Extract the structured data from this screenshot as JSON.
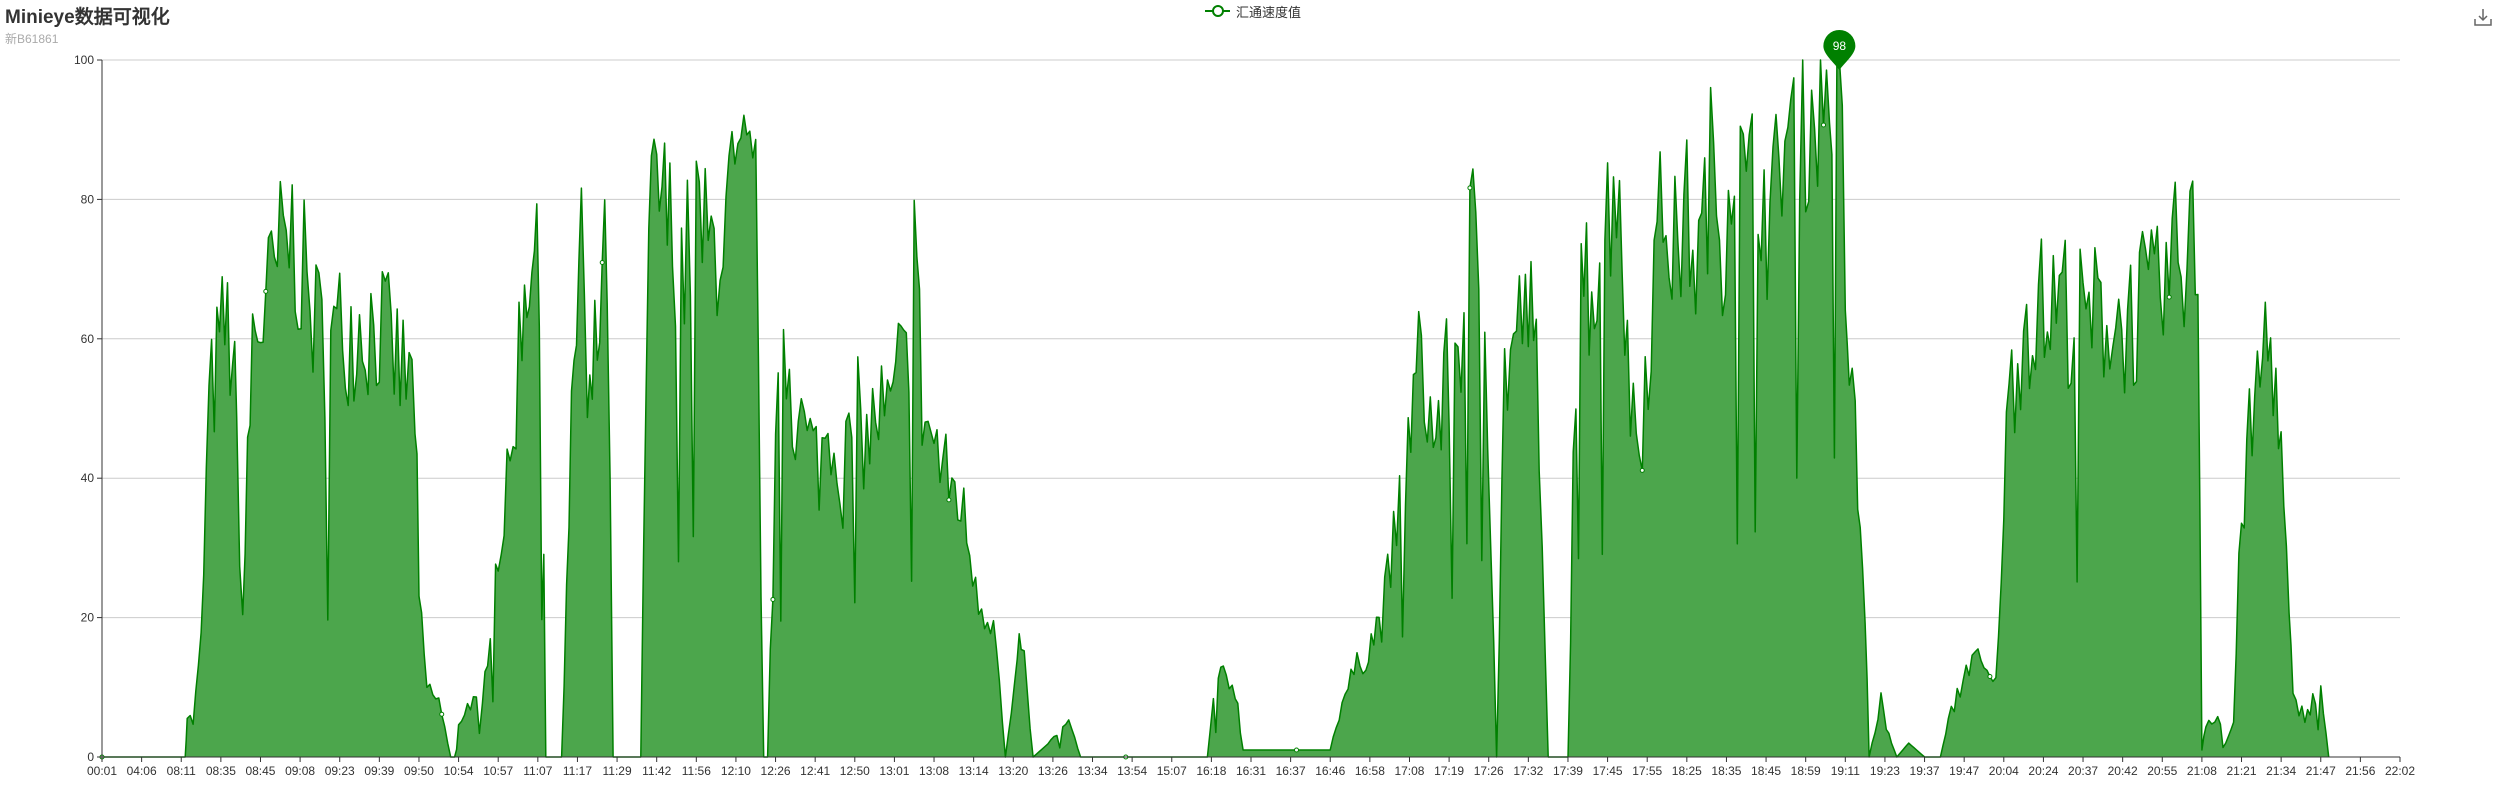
{
  "header": {
    "title": "Minieye数据可视化",
    "subtitle": "新B61861"
  },
  "toolbox": {
    "save_icon": "download-icon"
  },
  "colors": {
    "series": "#008000",
    "area": "#4ca64c",
    "grid": "#cccccc",
    "axis": "#333333"
  },
  "chart_data": {
    "type": "area",
    "title": "Minieye数据可视化",
    "subtitle": "新B61861",
    "legend": {
      "entries": [
        "汇通速度值"
      ],
      "position": "top-center"
    },
    "ylim": [
      0,
      100
    ],
    "yticks": [
      0,
      20,
      40,
      60,
      80,
      100
    ],
    "grid": true,
    "x": [
      "00:01",
      "04:06",
      "08:11",
      "08:35",
      "08:45",
      "09:08",
      "09:23",
      "09:39",
      "09:50",
      "10:54",
      "10:57",
      "11:07",
      "11:17",
      "11:29",
      "11:42",
      "11:56",
      "12:10",
      "12:26",
      "12:41",
      "12:50",
      "13:01",
      "13:08",
      "13:14",
      "13:20",
      "13:26",
      "13:34",
      "13:54",
      "15:07",
      "16:18",
      "16:31",
      "16:37",
      "16:46",
      "16:58",
      "17:08",
      "17:19",
      "17:26",
      "17:32",
      "17:39",
      "17:45",
      "17:55",
      "18:25",
      "18:35",
      "18:45",
      "18:59",
      "19:11",
      "19:23",
      "19:37",
      "19:47",
      "20:04",
      "20:24",
      "20:37",
      "20:42",
      "20:55",
      "21:08",
      "21:21",
      "21:34",
      "21:47",
      "21:56",
      "22:02"
    ],
    "series": [
      {
        "name": "汇通速度值",
        "keypoints": [
          [
            0,
            0
          ],
          [
            2.1,
            0
          ],
          [
            2.15,
            6
          ],
          [
            2.3,
            5
          ],
          [
            2.5,
            16
          ],
          [
            2.7,
            50
          ],
          [
            3.1,
            62
          ],
          [
            3.3,
            58
          ],
          [
            3.4,
            45
          ],
          [
            3.55,
            20
          ],
          [
            3.8,
            60
          ],
          [
            4.2,
            65
          ],
          [
            4.5,
            72
          ],
          [
            4.8,
            75
          ],
          [
            5.1,
            68
          ],
          [
            5.4,
            62
          ],
          [
            5.7,
            58
          ],
          [
            6.0,
            61
          ],
          [
            6.5,
            62
          ],
          [
            7.0,
            62
          ],
          [
            7.3,
            58
          ],
          [
            7.6,
            55
          ],
          [
            7.9,
            52
          ],
          [
            8.0,
            22
          ],
          [
            8.2,
            10
          ],
          [
            8.5,
            8
          ],
          [
            8.8,
            0
          ],
          [
            8.9,
            0
          ],
          [
            9.0,
            5
          ],
          [
            9.3,
            8
          ],
          [
            9.6,
            7
          ],
          [
            9.8,
            20
          ],
          [
            10.0,
            30
          ],
          [
            10.3,
            40
          ],
          [
            10.6,
            65
          ],
          [
            10.85,
            75
          ],
          [
            11.1,
            60
          ],
          [
            11.2,
            0
          ],
          [
            11.6,
            0
          ],
          [
            11.85,
            45
          ],
          [
            12.1,
            80
          ],
          [
            12.25,
            45
          ],
          [
            12.5,
            60
          ],
          [
            12.75,
            72
          ],
          [
            12.9,
            0
          ],
          [
            13.6,
            0
          ],
          [
            13.8,
            75
          ],
          [
            14.0,
            82
          ],
          [
            14.4,
            75
          ],
          [
            14.7,
            70
          ],
          [
            15.0,
            78
          ],
          [
            15.3,
            72
          ],
          [
            15.6,
            75
          ],
          [
            15.9,
            80
          ],
          [
            16.2,
            82
          ],
          [
            16.5,
            80
          ],
          [
            16.7,
            0
          ],
          [
            16.8,
            0
          ],
          [
            17.0,
            40
          ],
          [
            17.2,
            62
          ],
          [
            17.5,
            50
          ],
          [
            17.8,
            45
          ],
          [
            18.1,
            42
          ],
          [
            18.4,
            48
          ],
          [
            18.7,
            40
          ],
          [
            19.0,
            50
          ],
          [
            19.3,
            45
          ],
          [
            19.6,
            50
          ],
          [
            19.9,
            48
          ],
          [
            20.1,
            55
          ],
          [
            20.3,
            55
          ],
          [
            20.5,
            78
          ],
          [
            20.7,
            50
          ],
          [
            21.0,
            45
          ],
          [
            21.3,
            40
          ],
          [
            21.6,
            38
          ],
          [
            21.9,
            30
          ],
          [
            22.2,
            22
          ],
          [
            22.5,
            20
          ],
          [
            22.8,
            0
          ],
          [
            23.1,
            12
          ],
          [
            23.2,
            18
          ],
          [
            23.5,
            0
          ],
          [
            24.1,
            3
          ],
          [
            24.4,
            5
          ],
          [
            24.7,
            0
          ],
          [
            25.2,
            0
          ],
          [
            27.9,
            0
          ],
          [
            28.05,
            8
          ],
          [
            28.3,
            12
          ],
          [
            28.6,
            10
          ],
          [
            28.8,
            1
          ],
          [
            31.0,
            1
          ],
          [
            31.3,
            8
          ],
          [
            31.6,
            12
          ],
          [
            31.9,
            15
          ],
          [
            32.3,
            20
          ],
          [
            32.6,
            30
          ],
          [
            32.9,
            42
          ],
          [
            33.1,
            50
          ],
          [
            33.3,
            58
          ],
          [
            33.6,
            45
          ],
          [
            34.0,
            55
          ],
          [
            34.3,
            62
          ],
          [
            34.6,
            75
          ],
          [
            34.9,
            70
          ],
          [
            35.2,
            0
          ],
          [
            35.4,
            55
          ],
          [
            35.7,
            60
          ],
          [
            36.0,
            65
          ],
          [
            36.2,
            55
          ],
          [
            36.5,
            0
          ],
          [
            37.0,
            0
          ],
          [
            37.2,
            60
          ],
          [
            37.6,
            70
          ],
          [
            38.0,
            78
          ],
          [
            38.3,
            85
          ],
          [
            38.5,
            55
          ],
          [
            38.8,
            45
          ],
          [
            39.1,
            65
          ],
          [
            39.4,
            80
          ],
          [
            39.7,
            72
          ],
          [
            40.0,
            78
          ],
          [
            40.3,
            70
          ],
          [
            40.6,
            85
          ],
          [
            40.9,
            75
          ],
          [
            41.2,
            88
          ],
          [
            41.5,
            80
          ],
          [
            41.8,
            85
          ],
          [
            42.1,
            75
          ],
          [
            42.4,
            88
          ],
          [
            42.7,
            92
          ],
          [
            43.0,
            90
          ],
          [
            43.3,
            93
          ],
          [
            43.6,
            96
          ],
          [
            43.85,
            98
          ],
          [
            44.0,
            70
          ],
          [
            44.1,
            55
          ],
          [
            44.25,
            45
          ],
          [
            44.5,
            20
          ],
          [
            44.6,
            0
          ],
          [
            44.9,
            8
          ],
          [
            45.1,
            3
          ],
          [
            45.3,
            0
          ],
          [
            45.6,
            2
          ],
          [
            45.8,
            1
          ],
          [
            46.0,
            0
          ],
          [
            46.4,
            0
          ],
          [
            46.6,
            5
          ],
          [
            46.9,
            10
          ],
          [
            47.2,
            15
          ],
          [
            47.5,
            12
          ],
          [
            47.8,
            10
          ],
          [
            48.0,
            38
          ],
          [
            48.2,
            55
          ],
          [
            48.5,
            62
          ],
          [
            48.8,
            65
          ],
          [
            49.1,
            63
          ],
          [
            49.4,
            66
          ],
          [
            49.7,
            64
          ],
          [
            50.0,
            62
          ],
          [
            50.3,
            63
          ],
          [
            50.6,
            64
          ],
          [
            50.9,
            62
          ],
          [
            51.2,
            63
          ],
          [
            51.5,
            65
          ],
          [
            51.8,
            64
          ],
          [
            52.1,
            68
          ],
          [
            52.4,
            72
          ],
          [
            52.7,
            74
          ],
          [
            52.9,
            72
          ],
          [
            53.0,
            1
          ],
          [
            53.1,
            5
          ],
          [
            53.4,
            6
          ],
          [
            53.6,
            2
          ],
          [
            53.8,
            5
          ],
          [
            54.0,
            35
          ],
          [
            54.2,
            45
          ],
          [
            54.4,
            52
          ],
          [
            54.6,
            60
          ],
          [
            54.8,
            58
          ],
          [
            55.0,
            42
          ],
          [
            55.2,
            20
          ],
          [
            55.3,
            8
          ],
          [
            55.6,
            6
          ],
          [
            55.8,
            8
          ],
          [
            56.0,
            10
          ],
          [
            56.2,
            0
          ]
        ],
        "max_point": {
          "x": 43.85,
          "value": 98,
          "label": "98"
        }
      }
    ]
  }
}
